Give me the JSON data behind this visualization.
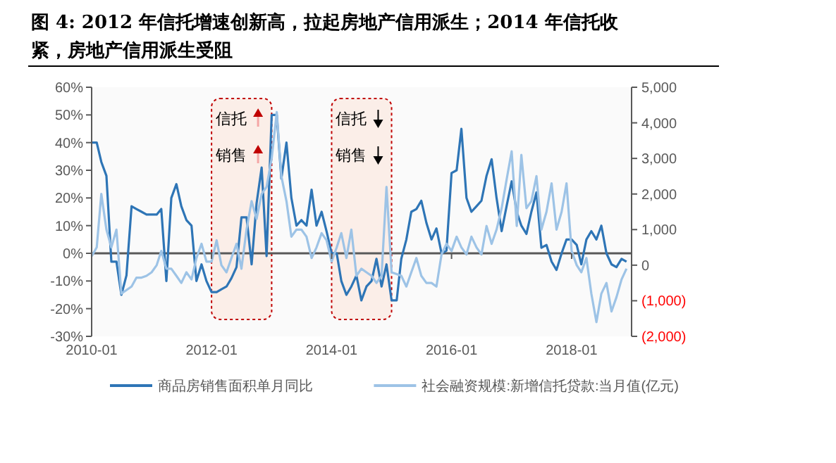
{
  "chart_data": {
    "type": "line",
    "title": "图 4:   2012 年信托增速创新高，拉起房地产信用派生；2014 年信托收紧，房地产信用派生受阻",
    "x": [
      "2010-01",
      "2010-02",
      "2010-03",
      "2010-04",
      "2010-05",
      "2010-06",
      "2010-07",
      "2010-08",
      "2010-09",
      "2010-10",
      "2010-11",
      "2010-12",
      "2011-01",
      "2011-02",
      "2011-03",
      "2011-04",
      "2011-05",
      "2011-06",
      "2011-07",
      "2011-08",
      "2011-09",
      "2011-10",
      "2011-11",
      "2011-12",
      "2012-01",
      "2012-02",
      "2012-03",
      "2012-04",
      "2012-05",
      "2012-06",
      "2012-07",
      "2012-08",
      "2012-09",
      "2012-10",
      "2012-11",
      "2012-12",
      "2013-01",
      "2013-02",
      "2013-03",
      "2013-04",
      "2013-05",
      "2013-06",
      "2013-07",
      "2013-08",
      "2013-09",
      "2013-10",
      "2013-11",
      "2013-12",
      "2014-01",
      "2014-02",
      "2014-03",
      "2014-04",
      "2014-05",
      "2014-06",
      "2014-07",
      "2014-08",
      "2014-09",
      "2014-10",
      "2014-11",
      "2014-12",
      "2015-01",
      "2015-02",
      "2015-03",
      "2015-04",
      "2015-05",
      "2015-06",
      "2015-07",
      "2015-08",
      "2015-09",
      "2015-10",
      "2015-11",
      "2015-12",
      "2016-01",
      "2016-02",
      "2016-03",
      "2016-04",
      "2016-05",
      "2016-06",
      "2016-07",
      "2016-08",
      "2016-09",
      "2016-10",
      "2016-11",
      "2016-12",
      "2017-01",
      "2017-02",
      "2017-03",
      "2017-04",
      "2017-05",
      "2017-06",
      "2017-07",
      "2017-08",
      "2017-09",
      "2017-10",
      "2017-11",
      "2017-12",
      "2018-01",
      "2018-02",
      "2018-03",
      "2018-04",
      "2018-05",
      "2018-06",
      "2018-07",
      "2018-08",
      "2018-09",
      "2018-10",
      "2018-11",
      "2018-12"
    ],
    "series": [
      {
        "name": "商品房销售面积单月同比",
        "color": "#2e75b6",
        "values": [
          40,
          40,
          33,
          28,
          -3,
          -3,
          -15,
          -8,
          17,
          16,
          15,
          14,
          14,
          14,
          16,
          -10,
          20,
          25,
          17,
          12,
          10,
          -10,
          -4,
          -10,
          -14,
          -14,
          -13,
          -12,
          -9,
          -5,
          13,
          13,
          -4,
          18,
          31,
          -1,
          50,
          50,
          27,
          40,
          20,
          10,
          12,
          10,
          23,
          10,
          15,
          8,
          0,
          0,
          -10,
          -15,
          -12,
          -8,
          -17,
          -12,
          -10,
          -2,
          -12,
          -4,
          -17,
          -17,
          -2,
          5,
          15,
          16,
          19,
          11,
          5,
          9,
          0,
          1,
          29,
          30,
          45,
          20,
          15,
          17,
          19,
          28,
          34,
          20,
          8,
          17,
          26,
          15,
          10,
          7,
          15,
          22,
          2,
          3,
          -3,
          -6,
          0,
          5,
          5,
          3,
          -4,
          5,
          8,
          5,
          10,
          0,
          -4,
          -5,
          -2,
          -3
        ]
      },
      {
        "name": "社会融资规模:新增信托贷款:当月值(亿元)",
        "color": "#9dc3e6",
        "axis": "y2",
        "values": [
          250,
          500,
          2000,
          1000,
          500,
          1000,
          -800,
          -700,
          -600,
          -350,
          -350,
          -300,
          -200,
          0,
          400,
          -100,
          -100,
          -300,
          -500,
          -200,
          -400,
          200,
          600,
          100,
          100,
          700,
          0,
          -200,
          200,
          600,
          -100,
          1000,
          1800,
          1300,
          2000,
          2200,
          3000,
          4300,
          2500,
          1800,
          800,
          1000,
          1000,
          800,
          200,
          500,
          900,
          700,
          100,
          500,
          900,
          200,
          1000,
          -300,
          -100,
          -200,
          -300,
          -500,
          -300,
          2200,
          -200,
          -250,
          -300,
          -600,
          -200,
          200,
          -300,
          -500,
          -500,
          -600,
          300,
          600,
          400,
          800,
          500,
          300,
          800,
          500,
          300,
          1100,
          600,
          1000,
          1600,
          2400,
          3200,
          1100,
          3100,
          1600,
          1800,
          2500,
          1000,
          1500,
          2300,
          1000,
          1500,
          2300,
          400,
          0,
          -200,
          200,
          -800,
          -1600,
          -800,
          -500,
          -1300,
          -900,
          -400,
          -100
        ]
      }
    ],
    "xlim": [
      "2010-01",
      "2019-01"
    ],
    "xticks": [
      "2010-01",
      "2012-01",
      "2014-01",
      "2016-01",
      "2018-01"
    ],
    "ylim": [
      -30,
      60
    ],
    "yticks": [
      {
        "value": -30,
        "label": "-30%"
      },
      {
        "value": -20,
        "label": "-20%"
      },
      {
        "value": -10,
        "label": "-10%"
      },
      {
        "value": 0,
        "label": "0%"
      },
      {
        "value": 10,
        "label": "10%"
      },
      {
        "value": 20,
        "label": "20%"
      },
      {
        "value": 30,
        "label": "30%"
      },
      {
        "value": 40,
        "label": "40%"
      },
      {
        "value": 50,
        "label": "50%"
      },
      {
        "value": 60,
        "label": "60%"
      }
    ],
    "y2lim": [
      -2000,
      5000
    ],
    "y2ticks": [
      {
        "value": -2000,
        "label": "(2,000)"
      },
      {
        "value": -1000,
        "label": "(1,000)"
      },
      0,
      {
        "value": 1000,
        "label": "1,000"
      },
      {
        "value": 2000,
        "label": "2,000"
      },
      {
        "value": 3000,
        "label": "3,000"
      },
      {
        "value": 4000,
        "label": "4,000"
      },
      {
        "value": 5000,
        "label": "5,000"
      }
    ],
    "ref_lines": [
      {
        "axis": "y",
        "value": 0,
        "color": "#595959"
      }
    ],
    "bands": [
      {
        "axis": "x",
        "from": "2012-01",
        "to": "2013-01",
        "color": "#fbeee8"
      },
      {
        "axis": "x",
        "from": "2014-01",
        "to": "2015-01",
        "color": "#fbeee8"
      }
    ],
    "annotations": [
      "信托",
      "销售",
      "信托",
      "销售"
    ],
    "legend": "bottom",
    "grid": false,
    "marker": "none",
    "line_style": "solid"
  }
}
